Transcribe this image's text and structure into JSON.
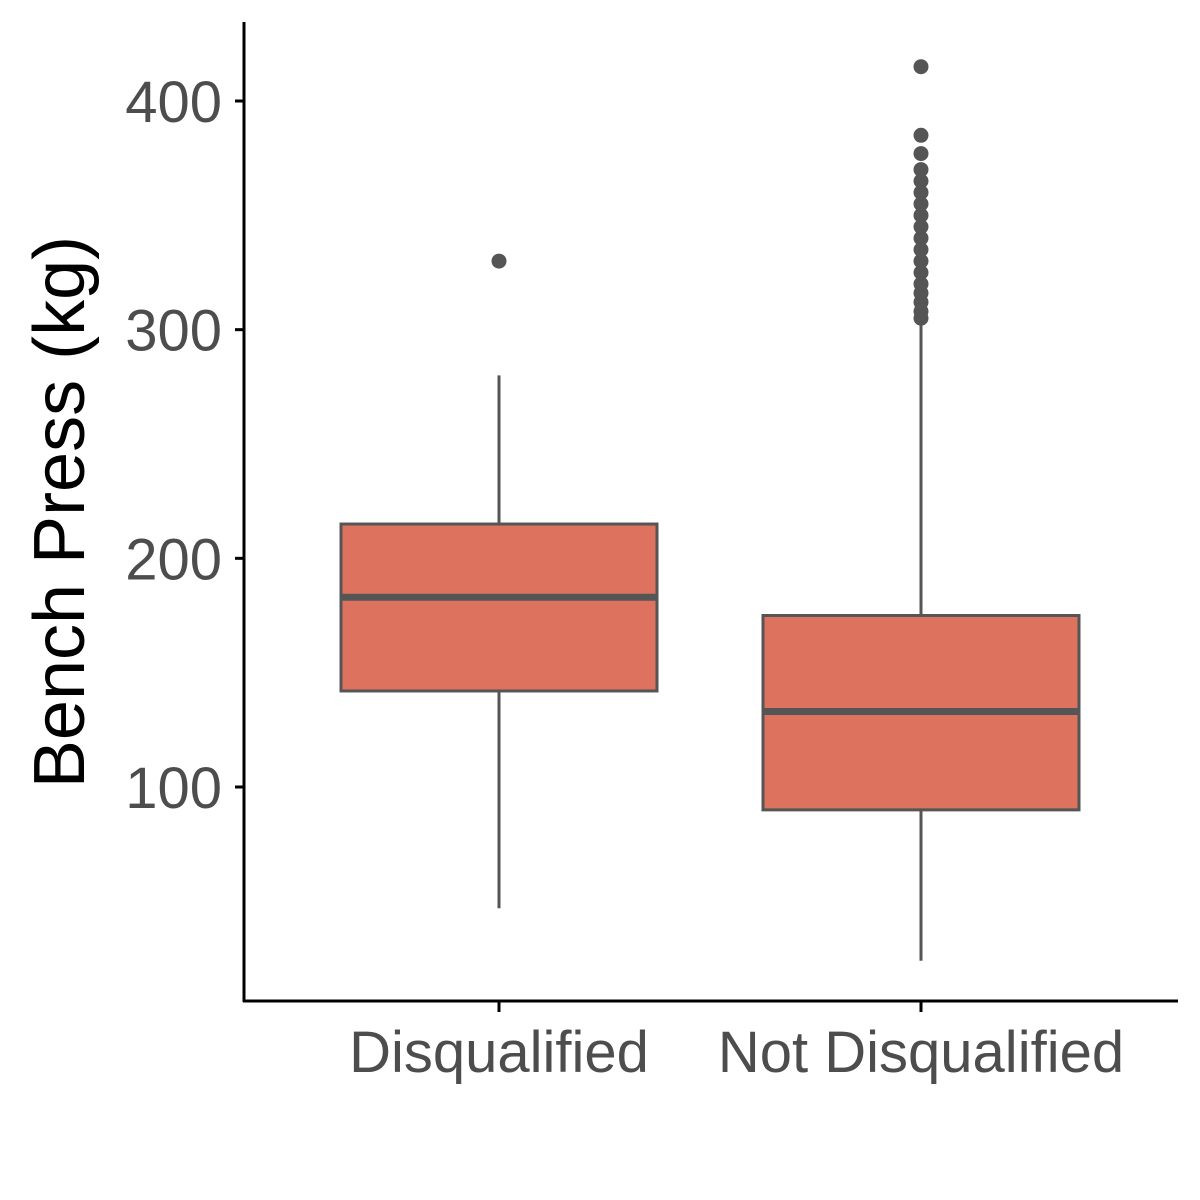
{
  "chart_data": {
    "type": "boxplot",
    "title": "",
    "xlabel": "",
    "ylabel": "Bench Press (kg)",
    "categories": [
      "Disqualified",
      "Not Disqualified"
    ],
    "ylim": [
      10,
      433
    ],
    "yticks": [
      100,
      200,
      300,
      400
    ],
    "grid": false,
    "legend": "none",
    "fill_color": "#dd735e",
    "line_color": "#555555",
    "boxes": [
      {
        "category": "Disqualified",
        "whisker_low": 47,
        "q1": 142,
        "median": 183,
        "q3": 215,
        "whisker_high": 280,
        "outliers": [
          330
        ]
      },
      {
        "category": "Not Disqualified",
        "whisker_low": 24,
        "q1": 90,
        "median": 133,
        "q3": 175,
        "whisker_high": 303,
        "outliers": [
          305,
          308,
          312,
          316,
          320,
          325,
          330,
          335,
          340,
          345,
          350,
          355,
          360,
          365,
          370,
          377,
          385,
          415
        ]
      }
    ]
  }
}
